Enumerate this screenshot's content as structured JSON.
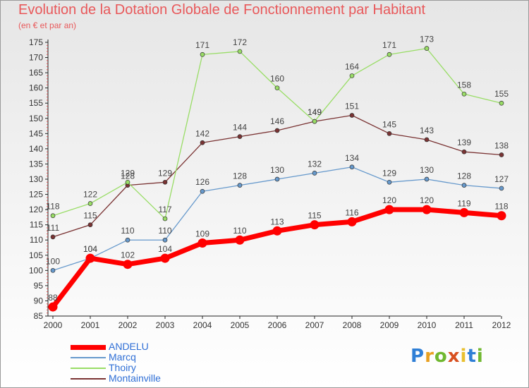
{
  "chart_data": {
    "type": "line",
    "title": "Evolution de la Dotation Globale de Fonctionnement par Habitant",
    "subtitle": "(en € et par an)",
    "xlabel": "",
    "ylabel": "",
    "x": [
      "2000",
      "2001",
      "2002",
      "2003",
      "2004",
      "2005",
      "2006",
      "2007",
      "2008",
      "2009",
      "2010",
      "2011",
      "2012"
    ],
    "ylim": [
      85,
      175
    ],
    "yticks": [
      85,
      90,
      95,
      100,
      105,
      110,
      115,
      120,
      125,
      130,
      135,
      140,
      145,
      150,
      155,
      160,
      165,
      170,
      175
    ],
    "legend_position": "bottom-left",
    "grid": false,
    "series": [
      {
        "name": "ANDELU",
        "color": "#ff0000",
        "values": [
          88,
          104,
          102,
          104,
          109,
          110,
          113,
          115,
          116,
          120,
          120,
          119,
          118
        ]
      },
      {
        "name": "Marcq",
        "color": "#6699cc",
        "values": [
          100,
          104,
          110,
          110,
          126,
          128,
          130,
          132,
          134,
          129,
          130,
          128,
          127
        ]
      },
      {
        "name": "Thoiry",
        "color": "#99dd66",
        "values": [
          118,
          122,
          129,
          117,
          171,
          172,
          160,
          149,
          164,
          171,
          173,
          158,
          155
        ]
      },
      {
        "name": "Montainville",
        "color": "#7a3333",
        "values": [
          111,
          115,
          128,
          129,
          142,
          144,
          146,
          149,
          151,
          145,
          143,
          139,
          138
        ]
      }
    ]
  },
  "brand": {
    "letters": [
      "P",
      "r",
      "o",
      "x",
      "i",
      "t",
      "i"
    ],
    "colors": [
      "#2f7fd6",
      "#e8a020",
      "#70b830",
      "#d85020",
      "#e8c030",
      "#2f7fd6",
      "#70b830"
    ]
  }
}
